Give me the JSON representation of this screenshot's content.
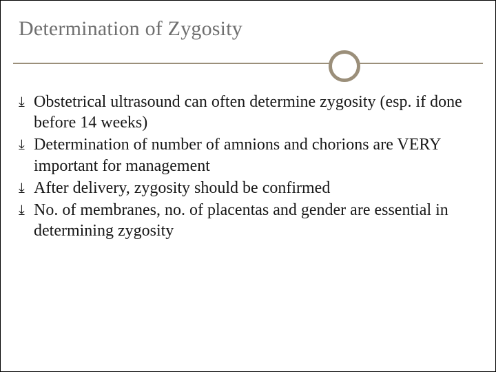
{
  "slide": {
    "title": "Determination of Zygosity",
    "title_color": "#6f6f6f",
    "title_fontsize": 30,
    "divider_color": "#9b8f7a",
    "bullet_glyph": "⤓",
    "text_color": "#181818",
    "body_fontsize": 24,
    "bullets": [
      "Obstetrical ultrasound can often determine zygosity (esp. if done before 14 weeks)",
      "Determination of number of amnions and chorions are VERY important for management",
      "After delivery, zygosity should be confirmed",
      "No. of membranes, no. of placentas and gender are essential in determining zygosity"
    ],
    "background_color": "#ffffff"
  }
}
